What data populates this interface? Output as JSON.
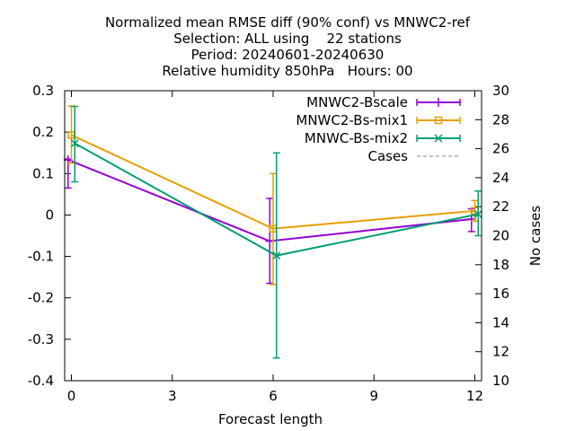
{
  "chart_data": {
    "type": "line",
    "title_lines": [
      "Normalized mean RMSE diff (90% conf) vs MNWC2-ref",
      "Selection: ALL using    22 stations",
      "Period: 20240601-20240630",
      "Relative humidity 850hPa   Hours: 00"
    ],
    "xlabel": "Forecast length",
    "ylabel": "",
    "y2label": "No cases",
    "xlim": [
      -0.2,
      12.2
    ],
    "ylim": [
      -0.4,
      0.3
    ],
    "y2lim": [
      10,
      30
    ],
    "xticks": [
      "0",
      "3",
      "6",
      "9",
      "12"
    ],
    "yticks": [
      "0.3",
      "0.2",
      "0.1",
      "0",
      "-0.1",
      "-0.2",
      "-0.3",
      "-0.4"
    ],
    "y2ticks": [
      "30",
      "28",
      "26",
      "24",
      "22",
      "20",
      "18",
      "16",
      "14",
      "12",
      "10"
    ],
    "legend_position": "top-right",
    "series": [
      {
        "name": "MNWC2-Bscale",
        "color": "#9400d3",
        "marker": "plus",
        "points": [
          {
            "x": -0.1,
            "y": 0.133,
            "low": 0.065,
            "high": 0.135
          },
          {
            "x": 5.9,
            "y": -0.063,
            "low": -0.165,
            "high": 0.04
          },
          {
            "x": 11.9,
            "y": -0.01,
            "low": -0.04,
            "high": 0.015
          }
        ]
      },
      {
        "name": "MNWC2-Bs-mix1",
        "color": "#e69f00",
        "marker": "square",
        "points": [
          {
            "x": 0.0,
            "y": 0.193,
            "low": 0.125,
            "high": 0.263
          },
          {
            "x": 6.0,
            "y": -0.033,
            "low": -0.168,
            "high": 0.1
          },
          {
            "x": 12.0,
            "y": 0.01,
            "low": -0.015,
            "high": 0.035
          }
        ]
      },
      {
        "name": "MNWC-Bs-mix2",
        "color": "#009e73",
        "marker": "cross",
        "points": [
          {
            "x": 0.1,
            "y": 0.173,
            "low": 0.08,
            "high": 0.262
          },
          {
            "x": 6.1,
            "y": -0.098,
            "low": -0.345,
            "high": 0.15
          },
          {
            "x": 12.1,
            "y": 0.002,
            "low": -0.05,
            "high": 0.058
          }
        ]
      }
    ],
    "cases": {
      "name": "Cases",
      "color": "#a0a0a0",
      "dash": true
    }
  }
}
